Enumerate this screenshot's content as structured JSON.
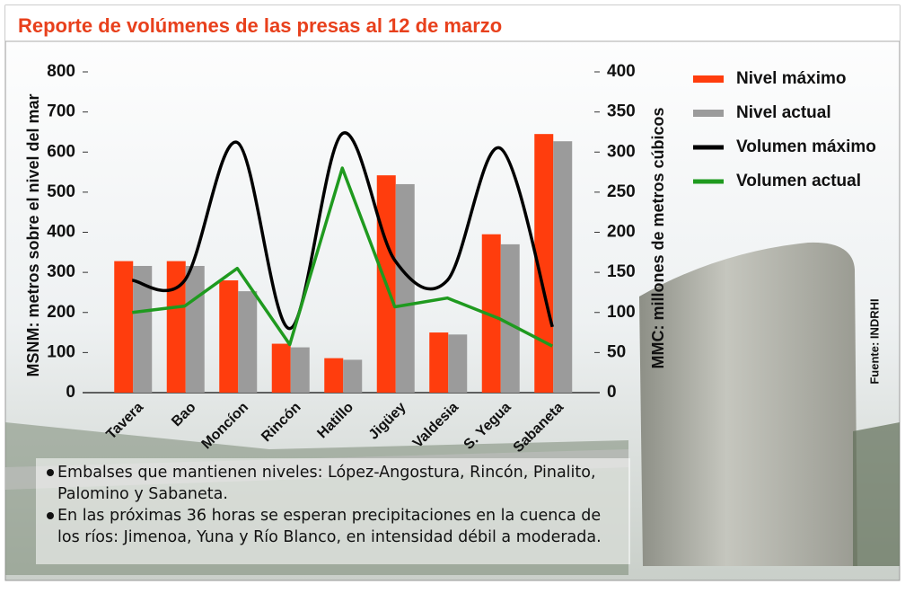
{
  "chart_data": {
    "type": "bar",
    "title": "Reporte de volúmenes de las presas al 12 de marzo",
    "y_label": "MSNM: metros sobre el nivel del mar",
    "y2_label": "MMC: millones de metros cúbicos",
    "source": "Fuente: INDRHI",
    "categories": [
      "Tavera",
      "Bao",
      "Moncíon",
      "Rincón",
      "Hatillo",
      "Jigüey",
      "Valdesia",
      "S. Yegua",
      "Sabaneta"
    ],
    "series": [
      {
        "name": "Nivel máximo",
        "color": "#ff3d0d",
        "type": "bar",
        "values": [
          328,
          328,
          280,
          122,
          86,
          542,
          150,
          395,
          645
        ]
      },
      {
        "name": "Nivel actual",
        "color": "#9b9b9b",
        "type": "bar",
        "values": [
          316,
          316,
          253,
          113,
          82,
          520,
          145,
          370,
          627
        ]
      },
      {
        "name": "Volumen máximo",
        "color": "#000000",
        "type": "line",
        "axis": "y2",
        "values": [
          140,
          140,
          312,
          80,
          323,
          165,
          140,
          305,
          82
        ]
      },
      {
        "name": "Volumen actual",
        "color": "#1f9a1f",
        "type": "line",
        "axis": "y2",
        "values": [
          100,
          108,
          155,
          60,
          280,
          107,
          118,
          92,
          58
        ]
      }
    ],
    "ylim": [
      0,
      800
    ],
    "yticks": [
      0,
      100,
      200,
      300,
      400,
      500,
      600,
      700,
      800
    ],
    "y2lim": [
      0,
      400
    ],
    "y2ticks": [
      0,
      50,
      100,
      150,
      200,
      250,
      300,
      350,
      400
    ],
    "notes": [
      [
        "Embalses que mantienen niveles: López-Angostura, Rincón, Pinalito,",
        "Palomino y Sabaneta."
      ],
      [
        "En las próximas 36 horas se esperan precipitaciones en la cuenca de",
        "los ríos: Jimenoa, Yuna y Río Blanco, en intensidad débil a moderada."
      ]
    ]
  }
}
